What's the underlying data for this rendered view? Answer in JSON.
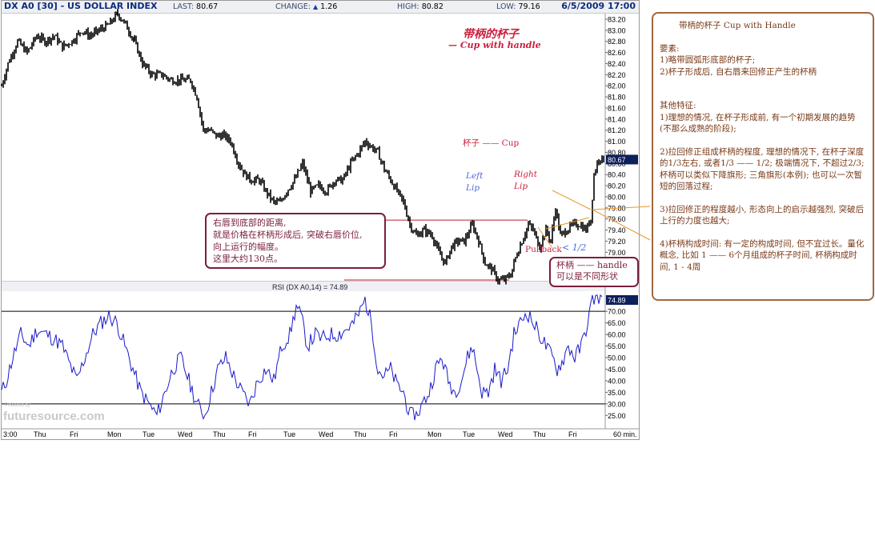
{
  "header": {
    "symbol": "DX A0 [30] - US DOLLAR INDEX",
    "last_label": "LAST:",
    "last_value": "80.67",
    "change_label": "CHANGE:",
    "change_arrow": "▲",
    "change_value": "1.26",
    "high_label": "HIGH:",
    "high_value": "80.82",
    "low_label": "LOW:",
    "low_value": "79.16",
    "datetime": "6/5/2009 17:00"
  },
  "annotations": {
    "title_cn": "带柄的杯子",
    "title_en": "— Cup with handle",
    "cup": "杯子 —— Cup",
    "left_lip_1": "Left",
    "left_lip_2": "Lip",
    "right_lip_1": "Right",
    "right_lip_2": "Lip",
    "pullback": "Pullback",
    "pullback_ratio": "< 1/2",
    "depth_box": [
      "右唇到底部的距离,",
      "就是价格在杯柄形成后, 突破右唇价位,",
      "向上运行的幅度。",
      "这里大约130点。"
    ],
    "handle_box": [
      "杯柄 —— handle",
      "可以是不同形状"
    ]
  },
  "sidebar": {
    "title": "带柄的杯子  Cup with Handle",
    "req_head": "要素:",
    "req_1": "1)略带圆弧形底部的杯子;",
    "req_2": "2)杯子形成后, 自右唇来回修正产生的杯柄",
    "other_head": "其他特征:",
    "other_1": "1)理想的情况, 在杯子形成前, 有一个初期发展的趋势(不那么成熟的阶段);",
    "other_2": "2)拉回修正组成杯柄的程度, 理想的情况下, 在杯子深度的1/3左右, 或者1/3 —— 1/2; 极端情况下, 不超过2/3; 杯柄可以类似下降旗形; 三角旗形(本例); 也可以一次暂短的回落过程;",
    "other_3": "3)拉回修正的程度越小, 形态向上的启示越强烈, 突破后上行的力度也越大;",
    "other_4": "4)杯柄构成时间: 有一定的构成时间, 但不宜过长。量化概念, 比如 1 —— 6个月组成的杯子时间, 杯柄构成时间, 1 - 4周"
  },
  "logo": {
    "powered": "Powered by",
    "text": "futuresource.com"
  },
  "colors": {
    "price": "#000000",
    "rsi": "#1a1acc",
    "annotation": "#cc1f3c",
    "lip_blue": "#4a6ad8",
    "box_border": "#7a1f3a",
    "handle_line": "#e8962a",
    "side_border": "#a1673c"
  },
  "chart_data": [
    {
      "type": "line",
      "series": [
        {
          "name": "DX A0",
          "waypoints": [
            [
              0,
              82.0
            ],
            [
              8,
              82.4
            ],
            [
              20,
              82.8
            ],
            [
              32,
              82.6
            ],
            [
              44,
              82.9
            ],
            [
              54,
              82.8
            ],
            [
              66,
              82.9
            ],
            [
              76,
              82.7
            ],
            [
              88,
              82.8
            ],
            [
              100,
              83.0
            ],
            [
              110,
              82.9
            ],
            [
              122,
              83.0
            ],
            [
              134,
              83.1
            ],
            [
              145,
              83.3
            ],
            [
              155,
              83.1
            ],
            [
              166,
              82.8
            ],
            [
              176,
              82.4
            ],
            [
              188,
              82.2
            ],
            [
              200,
              82.2
            ],
            [
              212,
              82.1
            ],
            [
              224,
              82.1
            ],
            [
              236,
              82.1
            ],
            [
              244,
              81.8
            ],
            [
              252,
              81.2
            ],
            [
              260,
              81.2
            ],
            [
              268,
              81.1
            ],
            [
              278,
              81.1
            ],
            [
              286,
              81.0
            ],
            [
              296,
              80.6
            ],
            [
              304,
              80.4
            ],
            [
              312,
              80.3
            ],
            [
              322,
              80.3
            ],
            [
              330,
              80.1
            ],
            [
              340,
              79.9
            ],
            [
              348,
              79.9
            ],
            [
              356,
              80.1
            ],
            [
              366,
              80.3
            ],
            [
              376,
              80.6
            ],
            [
              386,
              80.1
            ],
            [
              396,
              80.2
            ],
            [
              406,
              80.1
            ],
            [
              416,
              80.3
            ],
            [
              426,
              80.3
            ],
            [
              436,
              80.6
            ],
            [
              446,
              80.8
            ],
            [
              454,
              81.0
            ],
            [
              462,
              80.9
            ],
            [
              470,
              80.8
            ],
            [
              478,
              80.5
            ],
            [
              486,
              80.3
            ],
            [
              494,
              80.1
            ],
            [
              502,
              79.9
            ],
            [
              510,
              79.5
            ],
            [
              518,
              79.3
            ],
            [
              528,
              79.4
            ],
            [
              538,
              79.3
            ],
            [
              546,
              79.0
            ],
            [
              554,
              78.8
            ],
            [
              562,
              79.1
            ],
            [
              570,
              79.2
            ],
            [
              578,
              79.2
            ],
            [
              588,
              79.5
            ],
            [
              596,
              79.2
            ],
            [
              604,
              78.8
            ],
            [
              612,
              78.7
            ],
            [
              620,
              78.5
            ],
            [
              628,
              78.5
            ],
            [
              636,
              78.6
            ],
            [
              642,
              78.9
            ],
            [
              650,
              79.2
            ],
            [
              658,
              79.5
            ],
            [
              664,
              79.4
            ],
            [
              672,
              79.1
            ],
            [
              680,
              79.4
            ],
            [
              686,
              79.2
            ],
            [
              692,
              79.8
            ],
            [
              698,
              79.3
            ],
            [
              706,
              79.4
            ],
            [
              714,
              79.5
            ],
            [
              722,
              79.5
            ],
            [
              730,
              79.4
            ],
            [
              736,
              79.6
            ],
            [
              740,
              80.4
            ],
            [
              746,
              80.7
            ],
            [
              752,
              80.67
            ]
          ]
        }
      ],
      "x": [
        "3:00",
        "Thu",
        "Fri",
        "Mon",
        "Tue",
        "Wed",
        "Thu",
        "Fri",
        "Tue",
        "Wed",
        "Thu",
        "Fri",
        "Mon",
        "Tue",
        "Wed",
        "Thu",
        "Fri",
        "60 min."
      ],
      "y_ticks": [
        "83.20",
        "83.00",
        "82.80",
        "82.60",
        "82.40",
        "82.20",
        "82.00",
        "81.80",
        "81.60",
        "81.40",
        "81.20",
        "81.00",
        "80.80",
        "80.60",
        "80.40",
        "80.20",
        "80.00",
        "79.80",
        "79.60",
        "79.40",
        "79.20",
        "79.00",
        "78.80",
        "78.60"
      ],
      "ylim": [
        78.5,
        83.3
      ],
      "last_label": "80.67",
      "levels": [
        79.58,
        78.5
      ]
    },
    {
      "type": "line",
      "title": "RSI (DX A0,14) = 74.89",
      "series": [
        {
          "name": "RSI",
          "waypoints": [
            [
              0,
              35
            ],
            [
              6,
              40
            ],
            [
              14,
              50
            ],
            [
              24,
              60
            ],
            [
              34,
              55
            ],
            [
              44,
              62
            ],
            [
              56,
              60
            ],
            [
              66,
              58
            ],
            [
              76,
              55
            ],
            [
              84,
              48
            ],
            [
              94,
              40
            ],
            [
              104,
              50
            ],
            [
              114,
              60
            ],
            [
              124,
              65
            ],
            [
              134,
              68
            ],
            [
              144,
              65
            ],
            [
              154,
              55
            ],
            [
              164,
              45
            ],
            [
              174,
              35
            ],
            [
              184,
              30
            ],
            [
              194,
              25
            ],
            [
              204,
              35
            ],
            [
              214,
              45
            ],
            [
              224,
              50
            ],
            [
              234,
              40
            ],
            [
              244,
              30
            ],
            [
              254,
              25
            ],
            [
              262,
              35
            ],
            [
              270,
              45
            ],
            [
              280,
              50
            ],
            [
              290,
              42
            ],
            [
              300,
              35
            ],
            [
              310,
              30
            ],
            [
              320,
              40
            ],
            [
              330,
              45
            ],
            [
              340,
              40
            ],
            [
              350,
              55
            ],
            [
              360,
              60
            ],
            [
              368,
              72
            ],
            [
              374,
              68
            ],
            [
              382,
              55
            ],
            [
              392,
              60
            ],
            [
              400,
              58
            ],
            [
              410,
              60
            ],
            [
              420,
              60
            ],
            [
              430,
              62
            ],
            [
              440,
              65
            ],
            [
              448,
              70
            ],
            [
              454,
              75
            ],
            [
              462,
              65
            ],
            [
              470,
              45
            ],
            [
              478,
              42
            ],
            [
              486,
              45
            ],
            [
              494,
              38
            ],
            [
              502,
              35
            ],
            [
              510,
              25
            ],
            [
              518,
              25
            ],
            [
              526,
              30
            ],
            [
              534,
              35
            ],
            [
              542,
              45
            ],
            [
              550,
              50
            ],
            [
              558,
              40
            ],
            [
              566,
              35
            ],
            [
              574,
              40
            ],
            [
              582,
              50
            ],
            [
              588,
              55
            ],
            [
              594,
              45
            ],
            [
              600,
              35
            ],
            [
              608,
              35
            ],
            [
              616,
              45
            ],
            [
              624,
              40
            ],
            [
              632,
              45
            ],
            [
              640,
              60
            ],
            [
              648,
              65
            ],
            [
              656,
              70
            ],
            [
              664,
              65
            ],
            [
              672,
              60
            ],
            [
              680,
              55
            ],
            [
              688,
              50
            ],
            [
              694,
              45
            ],
            [
              700,
              48
            ],
            [
              708,
              55
            ],
            [
              716,
              50
            ],
            [
              724,
              55
            ],
            [
              732,
              65
            ],
            [
              738,
              75
            ],
            [
              744,
              77
            ],
            [
              750,
              74.89
            ]
          ]
        }
      ],
      "y_ticks": [
        "70.00",
        "65.00",
        "60.00",
        "55.00",
        "50.00",
        "45.00",
        "40.00",
        "35.00",
        "30.00",
        "25.00"
      ],
      "ylim": [
        22,
        78
      ],
      "levels": [
        70,
        30
      ],
      "last_label": "74.89"
    }
  ]
}
